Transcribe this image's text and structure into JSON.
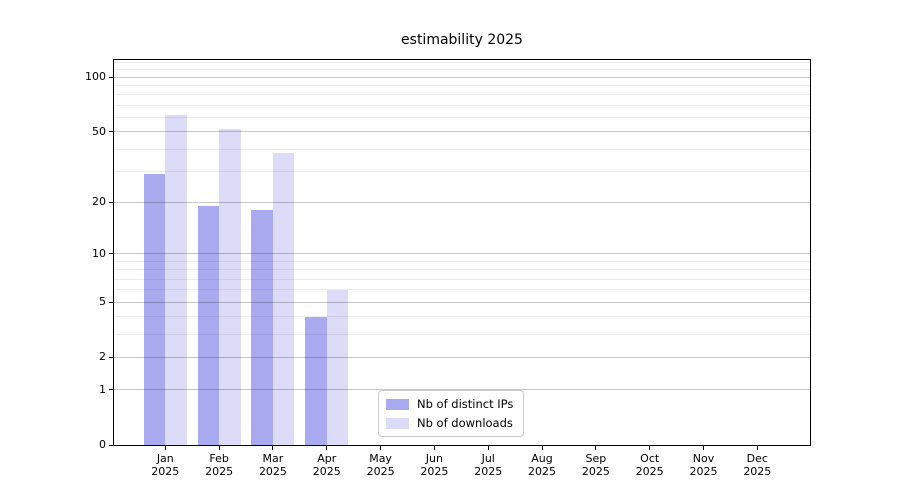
{
  "chart_data": {
    "type": "bar",
    "title": "estimability 2025",
    "categories": [
      {
        "month": "Jan",
        "year": "2025"
      },
      {
        "month": "Feb",
        "year": "2025"
      },
      {
        "month": "Mar",
        "year": "2025"
      },
      {
        "month": "Apr",
        "year": "2025"
      },
      {
        "month": "May",
        "year": "2025"
      },
      {
        "month": "Jun",
        "year": "2025"
      },
      {
        "month": "Jul",
        "year": "2025"
      },
      {
        "month": "Aug",
        "year": "2025"
      },
      {
        "month": "Sep",
        "year": "2025"
      },
      {
        "month": "Oct",
        "year": "2025"
      },
      {
        "month": "Nov",
        "year": "2025"
      },
      {
        "month": "Dec",
        "year": "2025"
      }
    ],
    "series": [
      {
        "name": "Nb of distinct IPs",
        "color": "#aaaaf0",
        "values": [
          29,
          19,
          18,
          4,
          0,
          0,
          0,
          0,
          0,
          0,
          0,
          0
        ]
      },
      {
        "name": "Nb of downloads",
        "color": "#dcdcf8",
        "values": [
          62,
          52,
          38,
          6,
          0,
          0,
          0,
          0,
          0,
          0,
          0,
          0
        ]
      }
    ],
    "xlabel": "",
    "ylabel": "",
    "yscale": "log1p",
    "ylim": [
      0,
      124
    ],
    "y_major_ticks": [
      0,
      1,
      2,
      5,
      10,
      20,
      50,
      100
    ],
    "y_minor_ticks": [
      3,
      4,
      6,
      7,
      8,
      9,
      30,
      40,
      60,
      70,
      80,
      90,
      110,
      120
    ],
    "grid": "both",
    "legend": {
      "position": "lower-center"
    }
  }
}
